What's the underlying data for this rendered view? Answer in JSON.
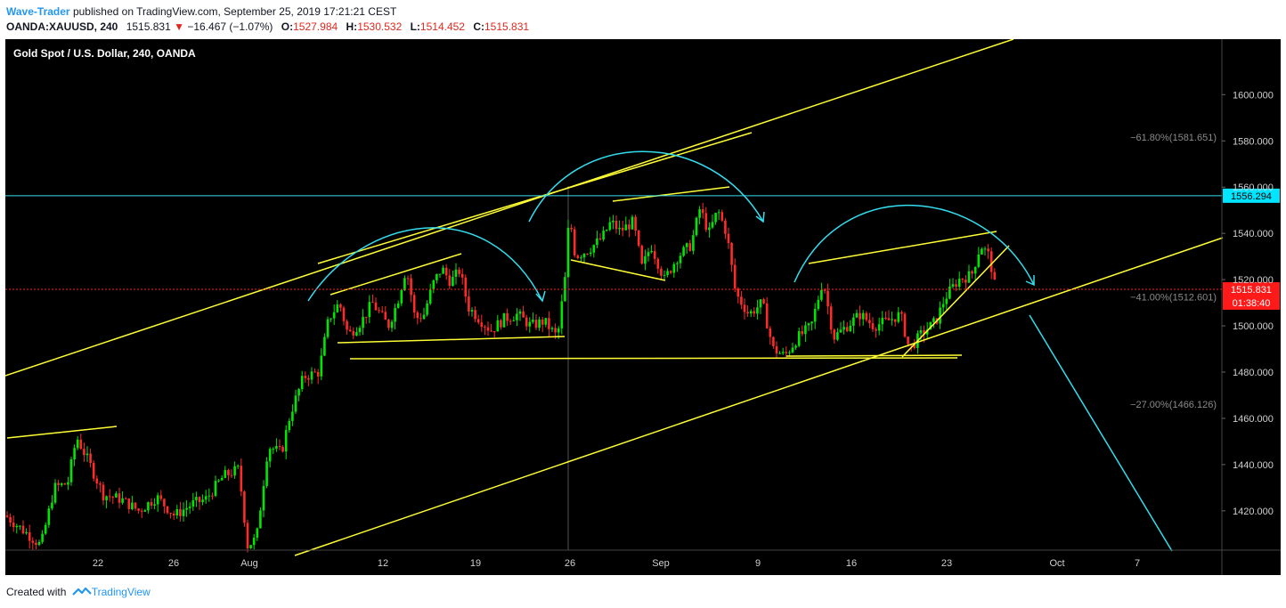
{
  "header": {
    "author": "Wave-Trader",
    "published_text": "published on TradingView.com, September 25, 2019 17:21:21 CEST",
    "symbol": "OANDA:XAUUSD, 240",
    "last": "1515.831",
    "change_arrow": "▼",
    "change": "−16.467 (−1.07%)",
    "open_label": "O:",
    "open": "1527.984",
    "high_label": "H:",
    "high": "1530.532",
    "low_label": "L:",
    "low": "1514.452",
    "close_label": "C:",
    "close": "1515.831"
  },
  "footer": {
    "created_with": "Created with",
    "brand": "TradingView",
    "brand_icon": "tradingview-logo-icon"
  },
  "chart_data": {
    "type": "candlestick",
    "title": "Gold Spot / U.S. Dollar, 240, OANDA",
    "x_ticks": [
      "22",
      "26",
      "Aug",
      "12",
      "19",
      "26",
      "Sep",
      "9",
      "16",
      "23",
      "Oct",
      "7"
    ],
    "y_ticks": [
      "1420.000",
      "1440.000",
      "1460.000",
      "1480.000",
      "1500.000",
      "1520.000",
      "1540.000",
      "1560.000",
      "1580.000",
      "1600.000"
    ],
    "y_range": [
      1403,
      1624
    ],
    "fib_levels": [
      {
        "label": "−61.80%(1581.651)",
        "value": 1581.651
      },
      {
        "label": "−41.00%(1512.601)",
        "value": 1512.601
      },
      {
        "label": "−27.00%(1466.126)",
        "value": 1466.126
      }
    ],
    "horizontal_line": {
      "value": 1556.294,
      "label": "1556.294"
    },
    "last_price": {
      "value": 1515.831,
      "label": "1515.831",
      "countdown": "01:38:40"
    },
    "colors": {
      "up": "#00e600",
      "down": "#ff2a2a",
      "trendline": "#ffff33",
      "arc": "#33ddee",
      "price_line": "#ff2222"
    },
    "path": [
      [
        0,
        1418
      ],
      [
        25,
        1410
      ],
      [
        40,
        1405
      ],
      [
        55,
        1430
      ],
      [
        70,
        1432
      ],
      [
        80,
        1452
      ],
      [
        95,
        1440
      ],
      [
        110,
        1427
      ],
      [
        130,
        1425
      ],
      [
        150,
        1420
      ],
      [
        170,
        1426
      ],
      [
        190,
        1418
      ],
      [
        210,
        1423
      ],
      [
        225,
        1425
      ],
      [
        245,
        1435
      ],
      [
        262,
        1438
      ],
      [
        272,
        1405
      ],
      [
        282,
        1408
      ],
      [
        295,
        1448
      ],
      [
        310,
        1445
      ],
      [
        320,
        1462
      ],
      [
        335,
        1478
      ],
      [
        352,
        1480
      ],
      [
        363,
        1503
      ],
      [
        375,
        1510
      ],
      [
        385,
        1496
      ],
      [
        400,
        1502
      ],
      [
        412,
        1510
      ],
      [
        430,
        1500
      ],
      [
        440,
        1510
      ],
      [
        450,
        1525
      ],
      [
        455,
        1515
      ],
      [
        460,
        1503
      ],
      [
        470,
        1505
      ],
      [
        480,
        1518
      ],
      [
        490,
        1525
      ],
      [
        500,
        1519
      ],
      [
        510,
        1524
      ],
      [
        520,
        1508
      ],
      [
        535,
        1502
      ],
      [
        545,
        1498
      ],
      [
        560,
        1503
      ],
      [
        575,
        1505
      ],
      [
        590,
        1500
      ],
      [
        605,
        1502
      ],
      [
        620,
        1495
      ],
      [
        630,
        1525
      ],
      [
        633,
        1549
      ],
      [
        640,
        1530
      ],
      [
        655,
        1533
      ],
      [
        670,
        1538
      ],
      [
        680,
        1545
      ],
      [
        690,
        1541
      ],
      [
        705,
        1545
      ],
      [
        715,
        1525
      ],
      [
        725,
        1535
      ],
      [
        740,
        1520
      ],
      [
        755,
        1530
      ],
      [
        770,
        1535
      ],
      [
        780,
        1551
      ],
      [
        790,
        1540
      ],
      [
        800,
        1550
      ],
      [
        810,
        1540
      ],
      [
        820,
        1514
      ],
      [
        835,
        1505
      ],
      [
        850,
        1510
      ],
      [
        862,
        1490
      ],
      [
        875,
        1487
      ],
      [
        890,
        1495
      ],
      [
        905,
        1500
      ],
      [
        918,
        1520
      ],
      [
        930,
        1495
      ],
      [
        945,
        1500
      ],
      [
        960,
        1505
      ],
      [
        975,
        1500
      ],
      [
        990,
        1502
      ],
      [
        1005,
        1505
      ],
      [
        1015,
        1490
      ],
      [
        1030,
        1497
      ],
      [
        1045,
        1502
      ],
      [
        1055,
        1512
      ],
      [
        1070,
        1520
      ],
      [
        1085,
        1522
      ],
      [
        1095,
        1535
      ],
      [
        1105,
        1530
      ],
      [
        1112,
        1515
      ]
    ]
  }
}
